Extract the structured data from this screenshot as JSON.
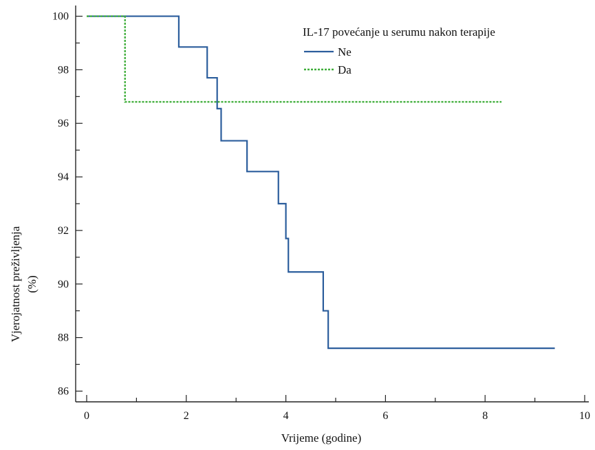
{
  "chart_data": {
    "type": "line",
    "xlabel": "Vrijeme (godine)",
    "ylabel_line1": "Vjerojatnost preživljenja",
    "ylabel_line2": "(%)",
    "xlim": [
      0,
      10
    ],
    "ylim": [
      85.6,
      100.4
    ],
    "x_ticks": [
      0,
      2,
      4,
      6,
      8,
      10
    ],
    "y_ticks": [
      86,
      88,
      90,
      92,
      94,
      96,
      98,
      100
    ],
    "grid": false,
    "legend": {
      "title": "IL-17 povećanje u serumu nakon terapije",
      "placement": "top-right"
    },
    "series": [
      {
        "name": "Ne",
        "color": "#2b5d9c",
        "style": "solid",
        "step_points": [
          [
            0,
            100
          ],
          [
            1.85,
            98.85
          ],
          [
            2.42,
            97.7
          ],
          [
            2.62,
            96.55
          ],
          [
            2.7,
            95.35
          ],
          [
            3.22,
            94.2
          ],
          [
            3.85,
            93.0
          ],
          [
            4.0,
            91.7
          ],
          [
            4.05,
            90.45
          ],
          [
            4.75,
            89.0
          ],
          [
            4.85,
            87.6
          ],
          [
            9.4,
            87.6
          ]
        ]
      },
      {
        "name": "Da",
        "color": "#3fae3a",
        "style": "dashed",
        "step_points": [
          [
            0,
            100
          ],
          [
            0.77,
            96.8
          ],
          [
            8.33,
            96.8
          ]
        ]
      }
    ]
  }
}
